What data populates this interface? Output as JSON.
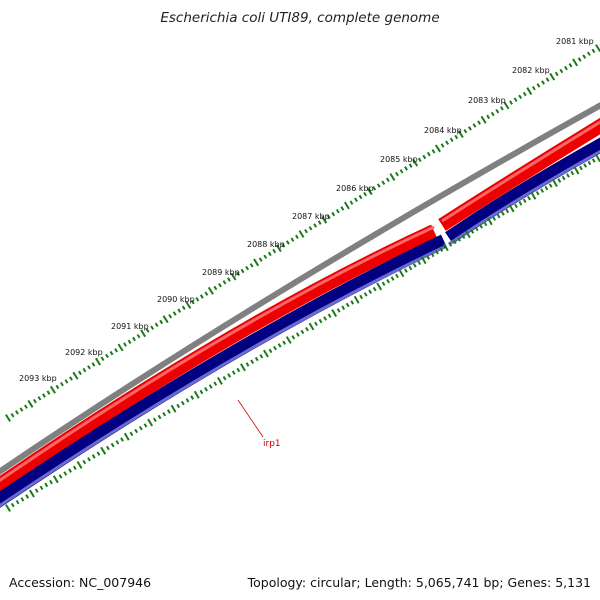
{
  "title": "Escherichia coli UTI89, complete genome",
  "footer": {
    "accession": "Accession: NC_007946",
    "summary": "Topology: circular; Length: 5,065,741 bp; Genes: 5,131"
  },
  "scale": {
    "ticks": [
      "2081 kbp",
      "2082 kbp",
      "2083 kbp",
      "2084 kbp",
      "2085 kbp",
      "2086 kbp",
      "2087 kbp",
      "2088 kbp",
      "2089 kbp",
      "2090 kbp",
      "2091 kbp",
      "2092 kbp",
      "2093 kbp"
    ]
  },
  "features": [
    {
      "label": "irp1",
      "strand": "reverse",
      "color": "#cc0000"
    }
  ],
  "colors": {
    "backbone": "#808080",
    "forward_strand": "#ee0000",
    "reverse_strand": "#000080",
    "ticks": "#1a7a1a"
  }
}
